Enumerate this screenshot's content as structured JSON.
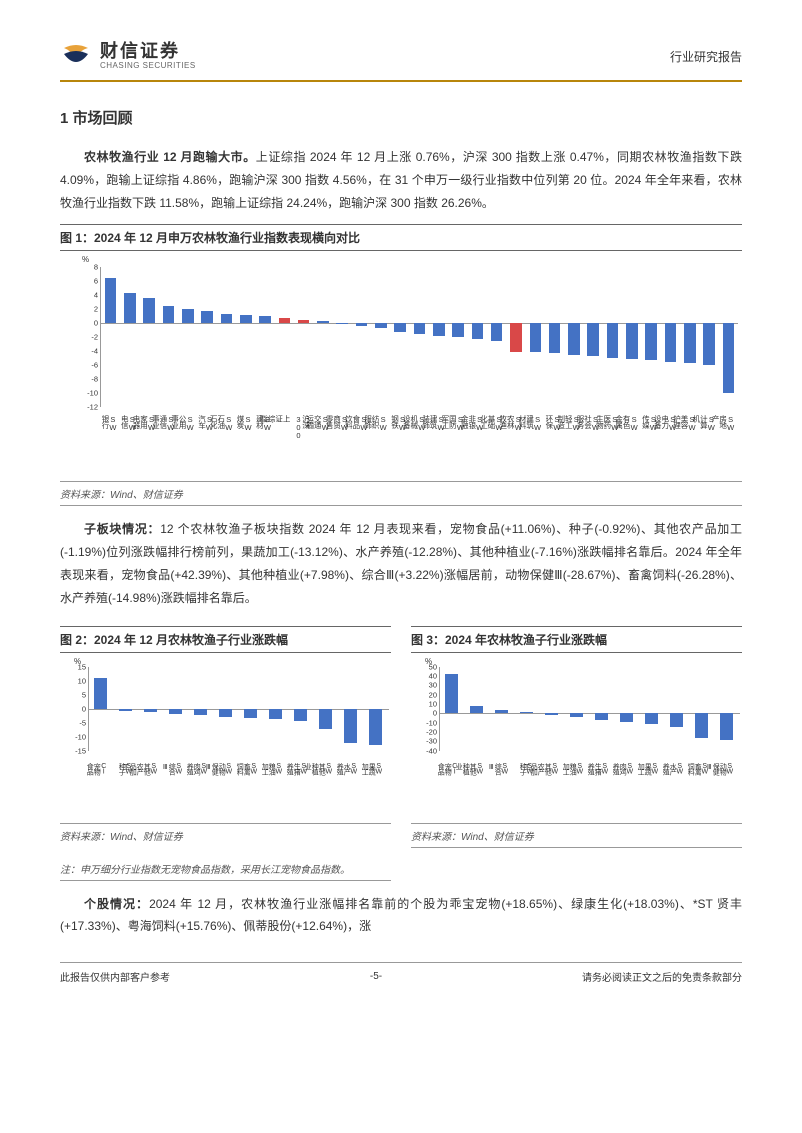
{
  "header": {
    "brand_cn": "财信证券",
    "brand_en": "CHASING SECURITIES",
    "doc_type": "行业研究报告",
    "logo_colors": {
      "orange": "#e8a23a",
      "navy": "#1a2f5a"
    }
  },
  "section_title": "1 市场回顾",
  "para1_bold": "农林牧渔行业 12 月跑输大市。",
  "para1": "上证综指 2024 年 12 月上涨 0.76%，沪深 300 指数上涨 0.47%，同期农林牧渔指数下跌 4.09%，跑输上证综指 4.86%，跑输沪深 300 指数 4.56%，在 31 个申万一级行业指数中位列第 20 位。2024 年全年来看，农林牧渔行业指数下跌 11.58%，跑输上证综指 24.24%，跑输沪深 300 指数 26.26%。",
  "chart1": {
    "title": "图 1：2024 年 12 月申万农林牧渔行业指数表现横向对比",
    "source": "资料来源：Wind、财信证券",
    "y_unit": "%",
    "ylim": [
      -12,
      8
    ],
    "yticks": [
      -12,
      -10,
      -8,
      -6,
      -4,
      -2,
      0,
      2,
      4,
      6,
      8
    ],
    "bar_color": "#4472c4",
    "highlight_color": "#d94848",
    "categories": [
      "SW银行",
      "SW电信",
      "SW家用电器",
      "SW通信事业",
      "SW公用事业",
      "SW汽车",
      "SW石油石化",
      "SW煤炭",
      "SW建材",
      "上证综指",
      "沪深300",
      "SW交通运输",
      "SW商贸零售",
      "SW食品饮料",
      "SW纺织服饰",
      "SW钢铁",
      "SW机械设备",
      "SW建筑装饰",
      "SW国防军工",
      "SW非银金融",
      "SW基础化工",
      "SW农林牧渔",
      "SW建筑材料",
      "SW环保",
      "SW轻工制造",
      "SW社会服务",
      "SW医药生物",
      "SW有色金属",
      "SW传媒",
      "SW电力设备",
      "SW美容护理",
      "SW计算机",
      "SW房地产"
    ],
    "values": [
      6.5,
      4.3,
      3.6,
      2.5,
      2.0,
      1.7,
      1.3,
      1.2,
      1.0,
      0.76,
      0.47,
      0.3,
      -0.1,
      -0.4,
      -0.6,
      -1.3,
      -1.5,
      -1.8,
      -2.0,
      -2.3,
      -2.5,
      -4.09,
      -4.1,
      -4.3,
      -4.5,
      -4.6,
      -4.9,
      -5.1,
      -5.3,
      -5.5,
      -5.7,
      -6.0,
      -10.0
    ],
    "highlight_indices": [
      9,
      10,
      21
    ]
  },
  "para2_bold": "子板块情况：",
  "para2": "12 个农林牧渔子板块指数 2024 年 12 月表现来看，宠物食品(+11.06%)、种子(-0.92%)、其他农产品加工(-1.19%)位列涨跌幅排行榜前列，果蔬加工(-13.12%)、水产养殖(-12.28%)、其他种植业(-7.16%)涨跌幅排名靠后。2024 年全年表现来看，宠物食品(+42.39%)、其他种植业(+7.98%)、综合Ⅲ(+3.22%)涨幅居前，动物保健Ⅲ(-28.67%)、畜禽饲料(-26.28%)、水产养殖(-14.98%)涨跌幅排名靠后。",
  "chart2": {
    "title": "图 2：2024 年 12 月农林牧渔子行业涨跌幅",
    "source": "资料来源：Wind、财信证券",
    "note": "注：申万细分行业指数无宠物食品指数，采用长江宠物食品指数。",
    "y_unit": "%",
    "ylim": [
      -15,
      15
    ],
    "yticks": [
      -15,
      -10,
      -5,
      0,
      5,
      10,
      15
    ],
    "bar_color": "#4472c4",
    "categories": [
      "CI宠物食品",
      "SW种子",
      "SW其他农产品加工",
      "SW综合Ⅲ",
      "SW肉鸡养殖",
      "SW动物保健Ⅲ",
      "SW畜禽饲料",
      "SW粮油加工",
      "SW生猪养殖",
      "SW其他种植业",
      "SW水产养殖",
      "SW果蔬加工"
    ],
    "values": [
      11.06,
      -0.92,
      -1.19,
      -1.8,
      -2.4,
      -2.9,
      -3.3,
      -3.9,
      -4.3,
      -7.16,
      -12.28,
      -13.12
    ]
  },
  "chart3": {
    "title": "图 3：2024 年农林牧渔子行业涨跌幅",
    "source": "资料来源：Wind、财信证券",
    "y_unit": "%",
    "ylim": [
      -40,
      50
    ],
    "yticks": [
      -40,
      -30,
      -20,
      -10,
      0,
      10,
      20,
      30,
      40,
      50
    ],
    "bar_color": "#4472c4",
    "categories": [
      "CI宠物食品",
      "SW其他种植业",
      "SW综合Ⅲ",
      "SW种子",
      "SW其他农产品加工",
      "SW粮油加工",
      "SW生猪养殖",
      "SW肉鸡养殖",
      "SW果蔬加工",
      "SW水产养殖",
      "SW畜禽饲料",
      "SW动物保健Ⅲ"
    ],
    "values": [
      42.39,
      7.98,
      3.22,
      1.5,
      -2.0,
      -4.0,
      -7.0,
      -9.0,
      -12.0,
      -14.98,
      -26.28,
      -28.67
    ]
  },
  "para3_bold": "个股情况：",
  "para3": "2024 年 12 月，农林牧渔行业涨幅排名靠前的个股为乖宝宠物(+18.65%)、绿康生化(+18.03%)、*ST 贤丰(+17.33%)、粤海饲料(+15.76%)、佩蒂股份(+12.64%)，涨",
  "footer": {
    "left": "此报告仅供内部客户参考",
    "center": "-5-",
    "right": "请务必阅读正文之后的免责条款部分"
  }
}
